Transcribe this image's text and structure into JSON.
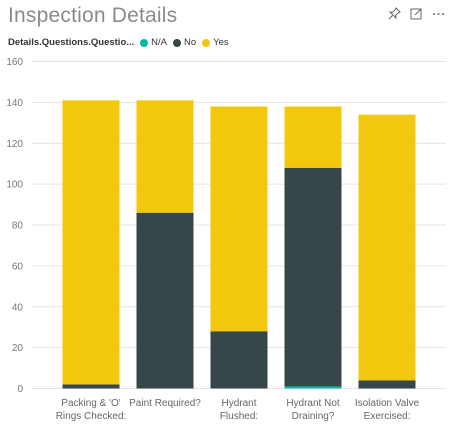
{
  "title": "Inspection Details",
  "header_icons": [
    "pin-icon",
    "expand-icon",
    "more-options-icon"
  ],
  "legend": {
    "title": "Details.Questions.Questio...",
    "items": [
      {
        "label": "N/A",
        "color": "#01B8AA"
      },
      {
        "label": "No",
        "color": "#374649"
      },
      {
        "label": "Yes",
        "color": "#F2C80F"
      }
    ]
  },
  "chart_data": {
    "type": "bar",
    "stacked": true,
    "categories": [
      [
        "Packing & 'O'",
        "Rings Checked:"
      ],
      [
        "Paint Required?"
      ],
      [
        "Hydrant",
        "Flushed:"
      ],
      [
        "Hydrant Not",
        "Draining?"
      ],
      [
        "Isolation Valve",
        "Exercised:"
      ]
    ],
    "series": [
      {
        "name": "N/A",
        "color": "#01B8AA",
        "values": [
          0,
          0,
          0,
          1,
          0
        ]
      },
      {
        "name": "No",
        "color": "#374649",
        "values": [
          2,
          86,
          28,
          107,
          4
        ]
      },
      {
        "name": "Yes",
        "color": "#F2C80F",
        "values": [
          139,
          55,
          110,
          30,
          130
        ]
      }
    ],
    "ylim": [
      0,
      160
    ],
    "yticks": [
      0,
      20,
      40,
      60,
      80,
      100,
      120,
      140,
      160
    ],
    "grid": true,
    "legend_position": "top-left"
  }
}
